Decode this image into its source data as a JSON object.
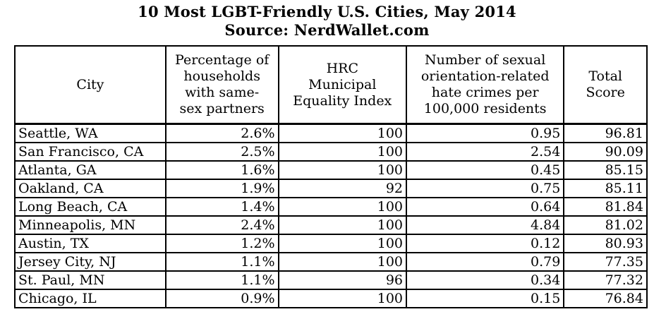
{
  "title": "10 Most LGBT-Friendly U.S. Cities, May 2014",
  "source": "Source:  NerdWallet.com",
  "headers": {
    "city": "City",
    "pct": [
      "Percentage of",
      "households",
      "with same-",
      "sex partners"
    ],
    "hrc": [
      "HRC",
      "Municipal",
      "Equality Index"
    ],
    "hate": [
      "Number of sexual",
      "orientation-related",
      "hate crimes per",
      "100,000 residents"
    ],
    "score": [
      "Total",
      "Score"
    ]
  },
  "rows": [
    {
      "city": "Seattle, WA",
      "pct": "2.6%",
      "hrc": "100",
      "hate": "0.95",
      "score": "96.81"
    },
    {
      "city": "San Francisco, CA",
      "pct": "2.5%",
      "hrc": "100",
      "hate": "2.54",
      "score": "90.09"
    },
    {
      "city": "Atlanta, GA",
      "pct": "1.6%",
      "hrc": "100",
      "hate": "0.45",
      "score": "85.15"
    },
    {
      "city": "Oakland, CA",
      "pct": "1.9%",
      "hrc": "92",
      "hate": "0.75",
      "score": "85.11"
    },
    {
      "city": "Long Beach, CA",
      "pct": "1.4%",
      "hrc": "100",
      "hate": "0.64",
      "score": "81.84"
    },
    {
      "city": "Minneapolis, MN",
      "pct": "2.4%",
      "hrc": "100",
      "hate": "4.84",
      "score": "81.02"
    },
    {
      "city": "Austin, TX",
      "pct": "1.2%",
      "hrc": "100",
      "hate": "0.12",
      "score": "80.93"
    },
    {
      "city": "Jersey City, NJ",
      "pct": "1.1%",
      "hrc": "100",
      "hate": "0.79",
      "score": "77.35"
    },
    {
      "city": "St. Paul, MN",
      "pct": "1.1%",
      "hrc": "96",
      "hate": "0.34",
      "score": "77.32"
    },
    {
      "city": "Chicago, IL",
      "pct": "0.9%",
      "hrc": "100",
      "hate": "0.15",
      "score": "76.84"
    }
  ]
}
